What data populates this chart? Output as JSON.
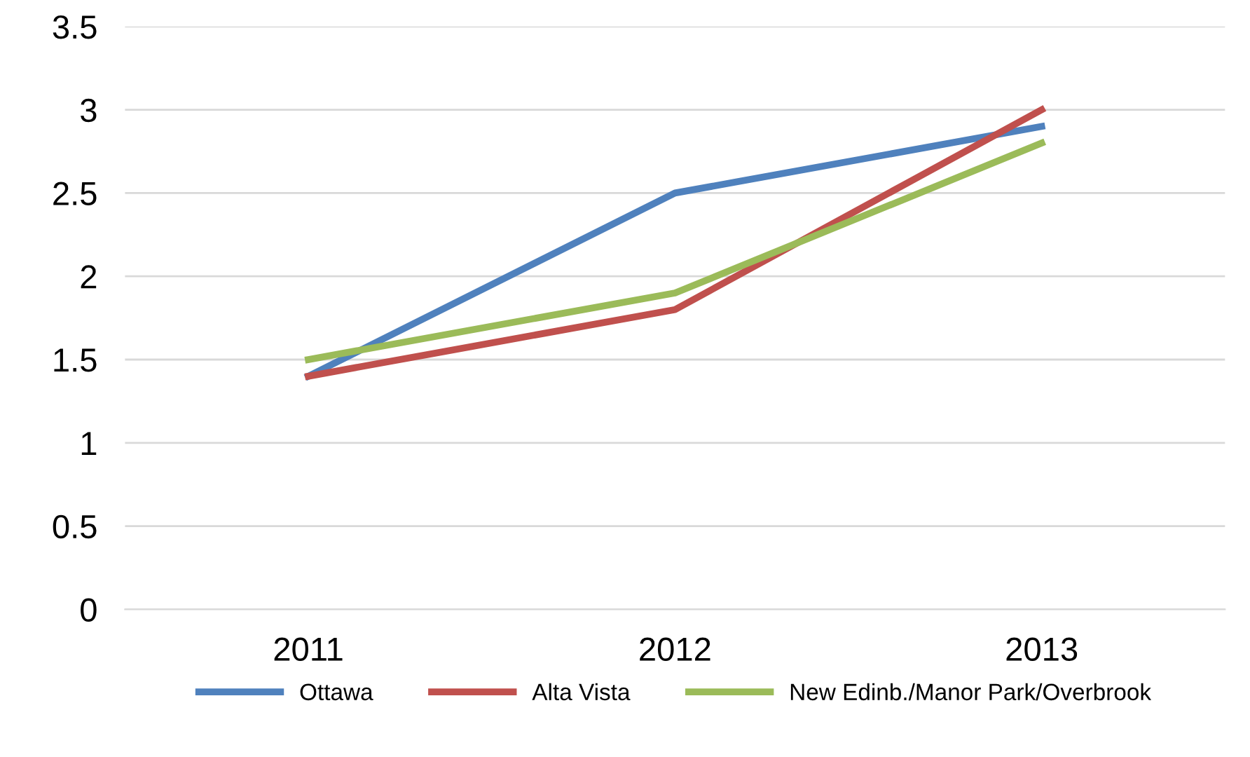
{
  "chart_data": {
    "type": "line",
    "categories": [
      "2011",
      "2012",
      "2013"
    ],
    "series": [
      {
        "name": "Ottawa",
        "color": "#4f81bd",
        "values": [
          1.4,
          2.5,
          2.9
        ]
      },
      {
        "name": "Alta Vista",
        "color": "#c0504d",
        "values": [
          1.4,
          1.8,
          3.0
        ]
      },
      {
        "name": "New Edinb./Manor Park/Overbrook",
        "color": "#9bbb59",
        "values": [
          1.5,
          1.9,
          2.8
        ]
      }
    ],
    "ylim": [
      0,
      3.5
    ],
    "yticks": [
      0,
      0.5,
      1,
      1.5,
      2,
      2.5,
      3,
      3.5
    ],
    "grid": "y",
    "legend": "bottom",
    "marker": "none",
    "line_style": "solid"
  }
}
